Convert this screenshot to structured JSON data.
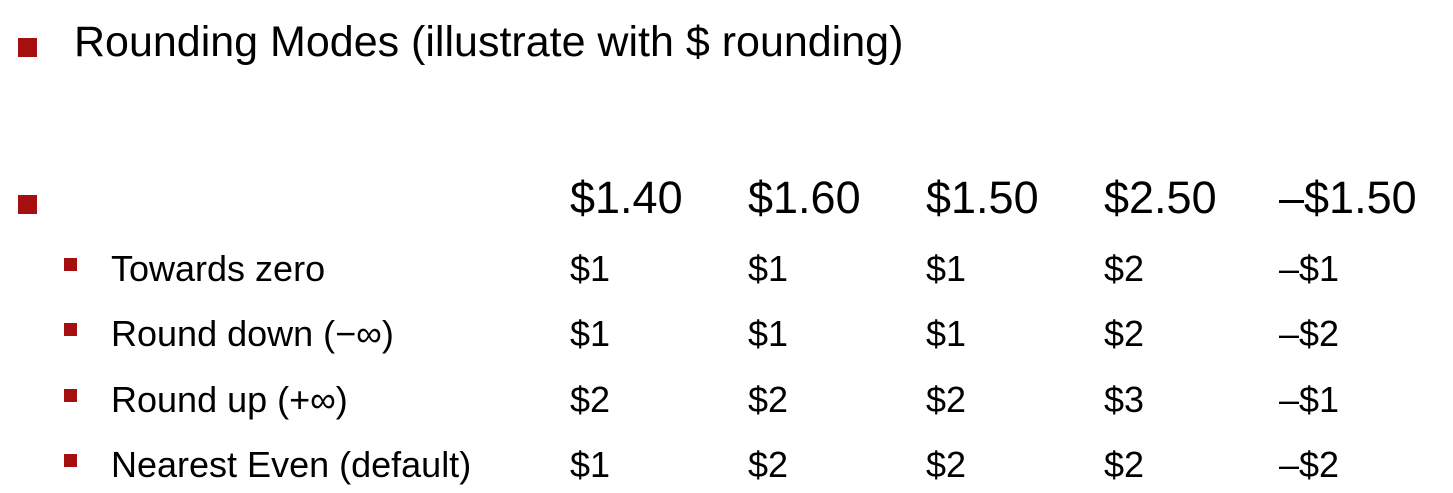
{
  "title": "Rounding Modes (illustrate with $ rounding)",
  "accent_color": "#a50f0f",
  "table": {
    "headers": [
      "$1.40",
      "$1.60",
      "$1.50",
      "$2.50",
      "–$1.50"
    ],
    "rows": [
      {
        "label": "Towards zero",
        "values": [
          "$1",
          "$1",
          "$1",
          "$2",
          "–$1"
        ]
      },
      {
        "label": "Round down (−∞)",
        "values": [
          "$1",
          "$1",
          "$1",
          "$2",
          "–$2"
        ]
      },
      {
        "label": "Round up (+∞)",
        "values": [
          "$2",
          "$2",
          "$2",
          "$3",
          "–$1"
        ]
      },
      {
        "label": "Nearest Even (default)",
        "values": [
          "$1",
          "$2",
          "$2",
          "$2",
          "–$2"
        ]
      }
    ]
  }
}
